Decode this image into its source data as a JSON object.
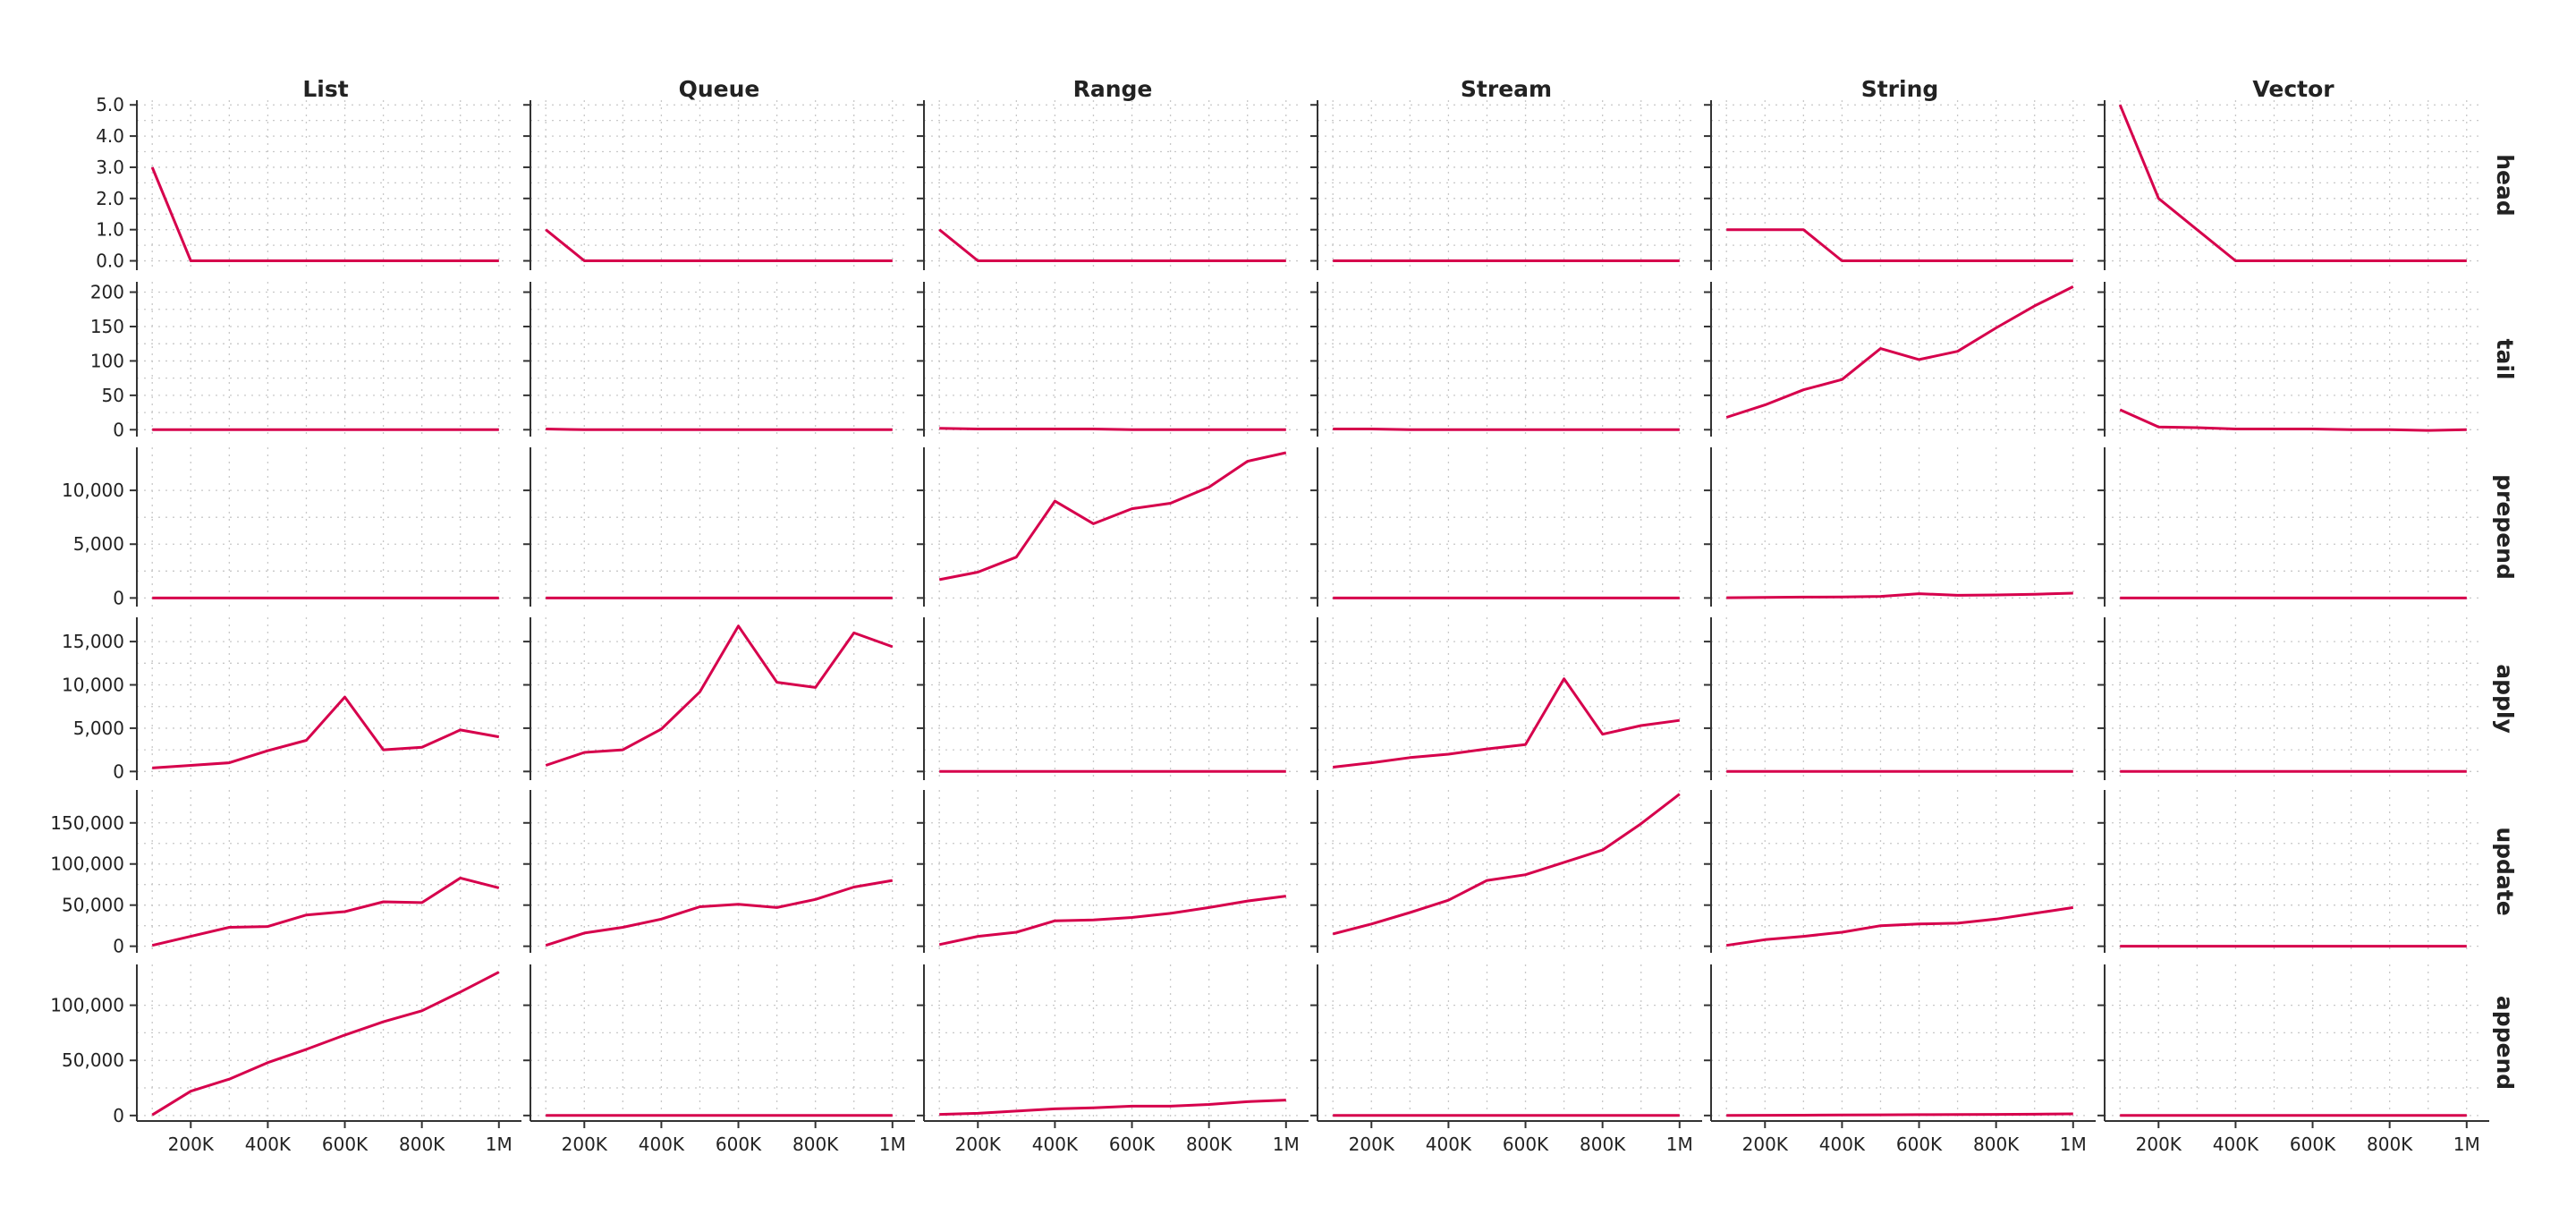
{
  "chart_data": {
    "type": "line",
    "layout": "facet-grid",
    "line_color": "#d6004c",
    "grid": true,
    "columns": [
      "List",
      "Queue",
      "Range",
      "Stream",
      "String",
      "Vector"
    ],
    "rows": [
      "head",
      "tail",
      "prepend",
      "apply",
      "update",
      "append"
    ],
    "x": [
      100000,
      200000,
      300000,
      400000,
      500000,
      600000,
      700000,
      800000,
      900000,
      1000000
    ],
    "x_ticks": [
      200000,
      400000,
      600000,
      800000,
      1000000
    ],
    "x_tick_labels": [
      "200K",
      "400K",
      "600K",
      "800K",
      "1M"
    ],
    "xlim": [
      60000,
      1040000
    ],
    "panels": [
      {
        "row": "head",
        "ylim": [
          -0.3,
          5.15
        ],
        "y_ticks": [
          0,
          1,
          2,
          3,
          4,
          5
        ],
        "y_tick_labels": [
          "0.0",
          "1.0",
          "2.0",
          "3.0",
          "4.0",
          "5.0"
        ],
        "series": {
          "List": [
            3,
            0,
            0,
            0,
            0,
            0,
            0,
            0,
            0,
            0
          ],
          "Queue": [
            1,
            0,
            0,
            0,
            0,
            0,
            0,
            0,
            0,
            0
          ],
          "Range": [
            1,
            0,
            0,
            0,
            0,
            0,
            0,
            0,
            0,
            0
          ],
          "Stream": [
            0,
            0,
            0,
            0,
            0,
            0,
            0,
            0,
            0,
            0
          ],
          "String": [
            1,
            1,
            1,
            0,
            0,
            0,
            0,
            0,
            0,
            0
          ],
          "Vector": [
            5,
            2,
            1,
            0,
            0,
            0,
            0,
            0,
            0,
            0
          ]
        }
      },
      {
        "row": "tail",
        "ylim": [
          -10,
          215
        ],
        "y_ticks": [
          0,
          50,
          100,
          150,
          200
        ],
        "y_tick_labels": [
          "0",
          "50",
          "100",
          "150",
          "200"
        ],
        "series": {
          "List": [
            0,
            0,
            0,
            0,
            0,
            0,
            0,
            0,
            0,
            0
          ],
          "Queue": [
            1,
            0,
            0,
            0,
            0,
            0,
            0,
            0,
            0,
            0
          ],
          "Range": [
            2,
            1,
            1,
            1,
            1,
            0,
            0,
            0,
            0,
            0
          ],
          "Stream": [
            1,
            1,
            0,
            0,
            0,
            0,
            0,
            0,
            0,
            0
          ],
          "String": [
            18,
            36,
            58,
            73,
            118,
            102,
            114,
            148,
            180,
            208
          ],
          "Vector": [
            29,
            4,
            3,
            1,
            1,
            1,
            0,
            0,
            -1,
            0
          ]
        }
      },
      {
        "row": "prepend",
        "ylim": [
          -800,
          14000
        ],
        "y_ticks": [
          0,
          5000,
          10000
        ],
        "y_tick_labels": [
          "0",
          "5,000",
          "10,000"
        ],
        "series": {
          "List": [
            0,
            0,
            0,
            0,
            0,
            0,
            0,
            0,
            0,
            0
          ],
          "Queue": [
            0,
            0,
            0,
            0,
            0,
            0,
            0,
            0,
            0,
            0
          ],
          "Range": [
            1700,
            2400,
            3800,
            9000,
            6900,
            8300,
            8800,
            10300,
            12700,
            13500
          ],
          "Stream": [
            0,
            0,
            0,
            0,
            0,
            0,
            0,
            0,
            0,
            0
          ],
          "String": [
            20,
            50,
            80,
            100,
            150,
            400,
            250,
            280,
            350,
            450
          ],
          "Vector": [
            0,
            0,
            0,
            0,
            0,
            0,
            0,
            0,
            0,
            0
          ]
        }
      },
      {
        "row": "apply",
        "ylim": [
          -1000,
          17800
        ],
        "y_ticks": [
          0,
          5000,
          10000,
          15000
        ],
        "y_tick_labels": [
          "0",
          "5,000",
          "10,000",
          "15,000"
        ],
        "series": {
          "List": [
            400,
            700,
            1000,
            2400,
            3600,
            8600,
            2500,
            2800,
            4800,
            4000
          ],
          "Queue": [
            700,
            2200,
            2500,
            4900,
            9200,
            16800,
            10300,
            9700,
            16000,
            14400
          ],
          "Range": [
            0,
            0,
            0,
            0,
            0,
            0,
            0,
            0,
            0,
            0
          ],
          "Stream": [
            500,
            1000,
            1600,
            2000,
            2600,
            3100,
            10700,
            4300,
            5300,
            5900
          ],
          "String": [
            0,
            0,
            0,
            0,
            0,
            0,
            0,
            0,
            0,
            0
          ],
          "Vector": [
            0,
            0,
            0,
            0,
            0,
            0,
            0,
            0,
            0,
            0
          ]
        }
      },
      {
        "row": "update",
        "ylim": [
          -8000,
          190000
        ],
        "y_ticks": [
          0,
          50000,
          100000,
          150000
        ],
        "y_tick_labels": [
          "0",
          "50,000",
          "100,000",
          "150,000"
        ],
        "series": {
          "List": [
            1000,
            12000,
            23000,
            24000,
            38000,
            42000,
            54000,
            53000,
            83000,
            71000
          ],
          "Queue": [
            1000,
            16000,
            23000,
            33000,
            48000,
            51000,
            47000,
            57000,
            72000,
            80000
          ],
          "Range": [
            2000,
            12000,
            17000,
            31000,
            32000,
            35000,
            40000,
            47000,
            55000,
            61000
          ],
          "Stream": [
            15000,
            27000,
            41000,
            56000,
            80000,
            87000,
            102000,
            117000,
            149000,
            185000
          ],
          "String": [
            1000,
            8000,
            12000,
            17000,
            25000,
            27000,
            28000,
            33000,
            40000,
            47000
          ],
          "Vector": [
            0,
            0,
            0,
            0,
            0,
            0,
            0,
            0,
            0,
            0
          ]
        }
      },
      {
        "row": "append",
        "ylim": [
          -5000,
          137000
        ],
        "y_ticks": [
          0,
          50000,
          100000
        ],
        "y_tick_labels": [
          "0",
          "50,000",
          "100,000"
        ],
        "series": {
          "List": [
            500,
            22000,
            33000,
            48000,
            60000,
            73000,
            85000,
            95000,
            112000,
            130000
          ],
          "Queue": [
            0,
            0,
            0,
            0,
            0,
            0,
            0,
            0,
            0,
            0
          ],
          "Range": [
            1000,
            2000,
            4000,
            6000,
            7000,
            8500,
            8500,
            10000,
            12500,
            14000
          ],
          "Stream": [
            0,
            0,
            0,
            0,
            0,
            0,
            0,
            0,
            0,
            0
          ],
          "String": [
            100,
            200,
            300,
            400,
            600,
            800,
            900,
            1000,
            1200,
            1500
          ],
          "Vector": [
            0,
            0,
            0,
            0,
            0,
            0,
            0,
            0,
            0,
            0
          ]
        }
      }
    ]
  }
}
